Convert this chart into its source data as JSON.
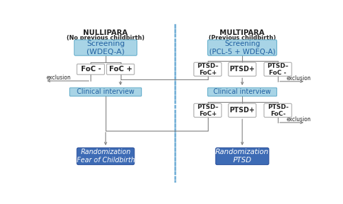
{
  "fig_width": 5.0,
  "fig_height": 2.98,
  "dpi": 100,
  "bg_color": "#ffffff",
  "nullipara_title": "NULLIPARA",
  "nullipara_subtitle": "(No previous childbirth)",
  "multipara_title": "MULTIPARA",
  "multipara_subtitle": "(Previous childbirth)",
  "screening_left_text": "Screening\n(WDEQ-A)",
  "screening_right_text": "Screening\n(PCL-5 + WDEQ-A)",
  "foc_minus_text": "FoC -",
  "foc_plus_text": "FoC +",
  "ptsd_mfp1": "PTSD–\nFoC+",
  "ptsd_p1": "PTSD+",
  "ptsd_mfm1": "PTSD–\nFoC -",
  "clinical_interview_text": "Clinical interview",
  "ptsd_mfp2": "PTSD–\nFoC+",
  "ptsd_p2": "PTSD+",
  "ptsd_mfm2": "PTSD-\nFoC-",
  "rand_left_text": "Randomization\nFear of Childbirth",
  "rand_right_text": "Randomization\nPTSD",
  "exclusion_text": "exclusion",
  "light_blue_fill": "#a8d4e6",
  "dark_blue_fill": "#3d6bb5",
  "white_fill": "#ffffff",
  "box_edge_light": "#6ab0cc",
  "box_edge_dark": "#2a4f9a",
  "box_edge_white": "#aaaaaa",
  "arrow_color": "#808080",
  "dashed_line_color": "#6aaad4",
  "text_dark": "#222222",
  "text_blue_screening": "#2060a0",
  "text_white_rand": "#ffffff"
}
